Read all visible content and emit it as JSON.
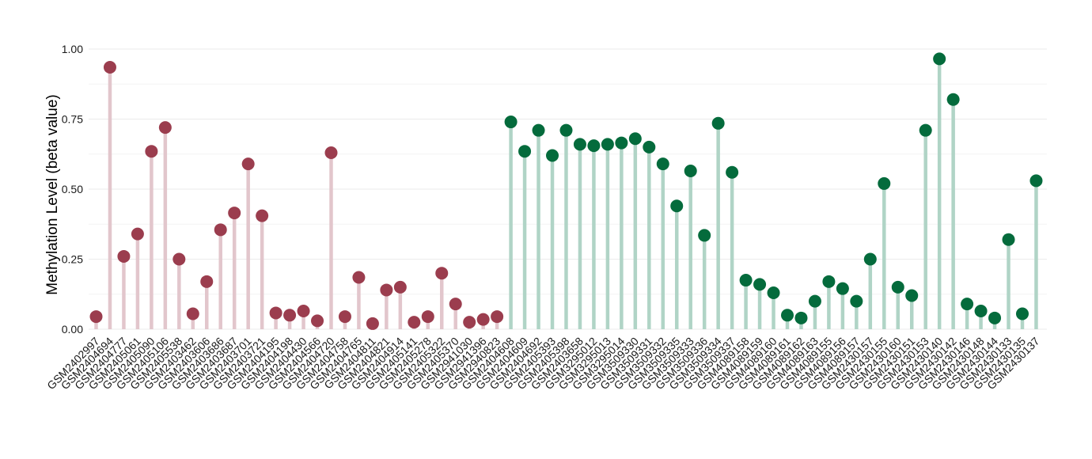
{
  "chart_data": {
    "type": "lollipop",
    "title": "",
    "xlabel": "",
    "ylabel": "Methylation Level (beta value)",
    "ylim": [
      0,
      1
    ],
    "yticks": [
      "0.00",
      "0.25",
      "0.50",
      "0.75",
      "1.00"
    ],
    "grid": true,
    "legend": "none",
    "colors": {
      "group1_point": "#9b3d4e",
      "group1_stem": "#e2c6cc",
      "group2_point": "#046b3c",
      "group2_stem": "#b0d4c6"
    },
    "points": [
      {
        "sample": "GSM2402997",
        "value": 0.045,
        "group": 1
      },
      {
        "sample": "GSM2404694",
        "value": 0.935,
        "group": 1
      },
      {
        "sample": "GSM2404777",
        "value": 0.26,
        "group": 1
      },
      {
        "sample": "GSM2405061",
        "value": 0.34,
        "group": 1
      },
      {
        "sample": "GSM2405090",
        "value": 0.635,
        "group": 1
      },
      {
        "sample": "GSM2405106",
        "value": 0.72,
        "group": 1
      },
      {
        "sample": "GSM2405538",
        "value": 0.25,
        "group": 1
      },
      {
        "sample": "GSM2403462",
        "value": 0.055,
        "group": 1
      },
      {
        "sample": "GSM2403606",
        "value": 0.17,
        "group": 1
      },
      {
        "sample": "GSM2403686",
        "value": 0.355,
        "group": 1
      },
      {
        "sample": "GSM2403687",
        "value": 0.415,
        "group": 1
      },
      {
        "sample": "GSM2403701",
        "value": 0.59,
        "group": 1
      },
      {
        "sample": "GSM2403721",
        "value": 0.405,
        "group": 1
      },
      {
        "sample": "GSM2404195",
        "value": 0.058,
        "group": 1
      },
      {
        "sample": "GSM2404198",
        "value": 0.05,
        "group": 1
      },
      {
        "sample": "GSM2404430",
        "value": 0.065,
        "group": 1
      },
      {
        "sample": "GSM2404566",
        "value": 0.03,
        "group": 1
      },
      {
        "sample": "GSM2404720",
        "value": 0.63,
        "group": 1
      },
      {
        "sample": "GSM2404758",
        "value": 0.045,
        "group": 1
      },
      {
        "sample": "GSM2404765",
        "value": 0.185,
        "group": 1
      },
      {
        "sample": "GSM2404811",
        "value": 0.02,
        "group": 1
      },
      {
        "sample": "GSM2404821",
        "value": 0.14,
        "group": 1
      },
      {
        "sample": "GSM2404914",
        "value": 0.15,
        "group": 1
      },
      {
        "sample": "GSM2405141",
        "value": 0.025,
        "group": 1
      },
      {
        "sample": "GSM2405278",
        "value": 0.045,
        "group": 1
      },
      {
        "sample": "GSM2405322",
        "value": 0.2,
        "group": 1
      },
      {
        "sample": "GSM2405370",
        "value": 0.09,
        "group": 1
      },
      {
        "sample": "GSM2941030",
        "value": 0.025,
        "group": 1
      },
      {
        "sample": "GSM2941396",
        "value": 0.035,
        "group": 1
      },
      {
        "sample": "GSM2940823",
        "value": 0.045,
        "group": 1
      },
      {
        "sample": "GSM2404608",
        "value": 0.74,
        "group": 2
      },
      {
        "sample": "GSM2404609",
        "value": 0.635,
        "group": 2
      },
      {
        "sample": "GSM2404692",
        "value": 0.71,
        "group": 2
      },
      {
        "sample": "GSM2405393",
        "value": 0.62,
        "group": 2
      },
      {
        "sample": "GSM2405398",
        "value": 0.71,
        "group": 2
      },
      {
        "sample": "GSM2403658",
        "value": 0.66,
        "group": 2
      },
      {
        "sample": "GSM3295012",
        "value": 0.655,
        "group": 2
      },
      {
        "sample": "GSM3295013",
        "value": 0.66,
        "group": 2
      },
      {
        "sample": "GSM3295014",
        "value": 0.665,
        "group": 2
      },
      {
        "sample": "GSM3509330",
        "value": 0.68,
        "group": 2
      },
      {
        "sample": "GSM3509331",
        "value": 0.65,
        "group": 2
      },
      {
        "sample": "GSM3509332",
        "value": 0.59,
        "group": 2
      },
      {
        "sample": "GSM3509335",
        "value": 0.44,
        "group": 2
      },
      {
        "sample": "GSM3509333",
        "value": 0.565,
        "group": 2
      },
      {
        "sample": "GSM3509336",
        "value": 0.335,
        "group": 2
      },
      {
        "sample": "GSM3509334",
        "value": 0.735,
        "group": 2
      },
      {
        "sample": "GSM3509337",
        "value": 0.56,
        "group": 2
      },
      {
        "sample": "GSM4089158",
        "value": 0.175,
        "group": 2
      },
      {
        "sample": "GSM4089159",
        "value": 0.16,
        "group": 2
      },
      {
        "sample": "GSM4089160",
        "value": 0.13,
        "group": 2
      },
      {
        "sample": "GSM4089161",
        "value": 0.05,
        "group": 2
      },
      {
        "sample": "GSM4089162",
        "value": 0.04,
        "group": 2
      },
      {
        "sample": "GSM4089163",
        "value": 0.1,
        "group": 2
      },
      {
        "sample": "GSM4089155",
        "value": 0.17,
        "group": 2
      },
      {
        "sample": "GSM4089156",
        "value": 0.145,
        "group": 2
      },
      {
        "sample": "GSM4089157",
        "value": 0.1,
        "group": 2
      },
      {
        "sample": "GSM2430157",
        "value": 0.25,
        "group": 2
      },
      {
        "sample": "GSM2430155",
        "value": 0.52,
        "group": 2
      },
      {
        "sample": "GSM2430160",
        "value": 0.15,
        "group": 2
      },
      {
        "sample": "GSM2430151",
        "value": 0.12,
        "group": 2
      },
      {
        "sample": "GSM2430153",
        "value": 0.71,
        "group": 2
      },
      {
        "sample": "GSM2430140",
        "value": 0.965,
        "group": 2
      },
      {
        "sample": "GSM2430142",
        "value": 0.82,
        "group": 2
      },
      {
        "sample": "GSM2430146",
        "value": 0.09,
        "group": 2
      },
      {
        "sample": "GSM2430148",
        "value": 0.065,
        "group": 2
      },
      {
        "sample": "GSM2430144",
        "value": 0.04,
        "group": 2
      },
      {
        "sample": "GSM2430133",
        "value": 0.32,
        "group": 2
      },
      {
        "sample": "GSM2430135",
        "value": 0.055,
        "group": 2
      },
      {
        "sample": "GSM2430137",
        "value": 0.53,
        "group": 2
      }
    ]
  }
}
